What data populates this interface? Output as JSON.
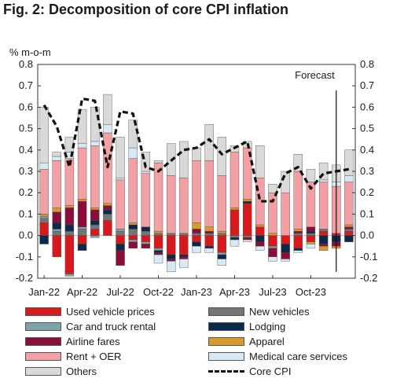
{
  "chart_data": {
    "type": "bar",
    "stacked": true,
    "title": "Fig. 2: Decomposition of core CPI inflation",
    "ylabel": "% m-o-m",
    "ylim": [
      -0.2,
      0.8
    ],
    "yticks": [
      -0.2,
      -0.1,
      0.0,
      0.1,
      0.2,
      0.3,
      0.4,
      0.5,
      0.6,
      0.7,
      0.8
    ],
    "ytick_labels_left": [
      "-0.2",
      "-0.1",
      "0.0",
      "0.1",
      "0.2",
      "0.3",
      "0.4",
      "0.5",
      "0.6",
      "0.7",
      "0.8"
    ],
    "ytick_labels_right": [
      "-0.2",
      "-0.1",
      "0.0",
      "0.1",
      "0.2",
      "0.3",
      "0.4",
      "0.5",
      "0.6",
      "0.7",
      "0.8"
    ],
    "xtick_labels": [
      "Jan-22",
      "Apr-22",
      "Jul-22",
      "Oct-22",
      "Jan-23",
      "Apr-23",
      "Jul-23",
      "Oct-23"
    ],
    "xtick_index": [
      0,
      3,
      6,
      9,
      12,
      15,
      18,
      21
    ],
    "forecast_label": "Forecast",
    "forecast_start_index": 23.5,
    "grid": false,
    "legend_position": "bottom",
    "months": [
      "Jan-22",
      "Feb-22",
      "Mar-22",
      "Apr-22",
      "May-22",
      "Jun-22",
      "Jul-22",
      "Aug-22",
      "Sep-22",
      "Oct-22",
      "Nov-22",
      "Dec-22",
      "Jan-23",
      "Feb-23",
      "Mar-23",
      "Apr-23",
      "May-23",
      "Jun-23",
      "Jul-23",
      "Aug-23",
      "Sep-23",
      "Oct-23",
      "Nov-23",
      "Dec-23",
      "Jan-24"
    ],
    "series": [
      {
        "name": "Used vehicle prices",
        "color": "#d7191c",
        "values": [
          0.06,
          -0.1,
          -0.18,
          -0.04,
          0.03,
          0.07,
          -0.04,
          -0.02,
          -0.03,
          -0.06,
          -0.09,
          -0.09,
          -0.03,
          -0.05,
          -0.08,
          0.12,
          0.15,
          0.04,
          -0.05,
          -0.04,
          -0.06,
          -0.03,
          0.02,
          0.01,
          0.02
        ]
      },
      {
        "name": "New vehicles",
        "color": "#757575",
        "values": [
          0.02,
          0.02,
          0.02,
          0.03,
          0.02,
          0.03,
          0.02,
          0.03,
          0.02,
          0.01,
          0.01,
          0.01,
          0.01,
          0.01,
          0.01,
          -0.01,
          -0.01,
          0.0,
          0.0,
          0.0,
          0.01,
          0.01,
          0.01,
          0.0,
          0.01
        ]
      },
      {
        "name": "Car and truck rental",
        "color": "#7aa4a8",
        "values": [
          0.01,
          0.01,
          -0.01,
          0.01,
          -0.01,
          0.0,
          0.01,
          -0.01,
          -0.01,
          -0.01,
          0.0,
          0.0,
          0.0,
          0.0,
          -0.01,
          0.0,
          0.0,
          0.0,
          -0.01,
          0.0,
          0.0,
          0.0,
          0.0,
          0.0,
          0.0
        ]
      },
      {
        "name": "Lodging",
        "color": "#0b2a4a",
        "values": [
          -0.04,
          0.03,
          0.03,
          -0.03,
          0.02,
          0.02,
          -0.03,
          0.02,
          0.02,
          -0.01,
          -0.02,
          -0.01,
          -0.02,
          -0.01,
          -0.02,
          -0.01,
          0.01,
          -0.03,
          0.0,
          -0.04,
          -0.01,
          0.01,
          -0.04,
          -0.03,
          -0.03
        ]
      },
      {
        "name": "Airline fares",
        "color": "#8b0d3a",
        "values": [
          0.0,
          0.05,
          0.08,
          0.12,
          0.05,
          0.02,
          -0.07,
          -0.03,
          -0.02,
          -0.01,
          -0.01,
          -0.01,
          0.02,
          0.01,
          0.0,
          0.0,
          -0.01,
          -0.02,
          -0.04,
          -0.03,
          0.01,
          0.02,
          -0.01,
          -0.02,
          0.01
        ]
      },
      {
        "name": "Apparel",
        "color": "#d99a2b",
        "values": [
          0.01,
          0.02,
          0.01,
          0.01,
          0.01,
          0.01,
          0.0,
          0.01,
          0.0,
          0.01,
          0.0,
          0.0,
          0.03,
          0.02,
          0.01,
          0.01,
          0.01,
          0.01,
          0.01,
          0.0,
          0.01,
          -0.01,
          -0.02,
          -0.01,
          0.01
        ]
      },
      {
        "name": "Rent + OER",
        "color": "#f2a0a4",
        "values": [
          0.21,
          0.22,
          0.22,
          0.24,
          0.29,
          0.33,
          0.23,
          0.3,
          0.25,
          0.32,
          0.27,
          0.26,
          0.29,
          0.31,
          0.26,
          0.26,
          0.24,
          0.22,
          0.19,
          0.2,
          0.27,
          0.21,
          0.22,
          0.22,
          0.2
        ]
      },
      {
        "name": "Medical care services",
        "color": "#d8e8f5",
        "values": [
          0.03,
          0.02,
          0.03,
          0.02,
          0.02,
          0.04,
          0.01,
          0.05,
          0.01,
          -0.04,
          -0.05,
          -0.04,
          -0.03,
          -0.02,
          -0.03,
          -0.03,
          -0.01,
          -0.02,
          -0.02,
          -0.01,
          -0.01,
          -0.02,
          0.01,
          0.02,
          0.03
        ]
      },
      {
        "name": "Others",
        "color": "#d9d9d9",
        "values": [
          0.26,
          0.02,
          0.07,
          0.16,
          0.16,
          0.14,
          0.19,
          0.13,
          0.09,
          0.01,
          0.15,
          0.17,
          0.06,
          0.17,
          0.18,
          0.03,
          0.03,
          0.15,
          0.04,
          0.1,
          0.08,
          0.06,
          0.08,
          0.08,
          0.12
        ]
      }
    ],
    "line": {
      "name": "Core CPI",
      "color": "#111111",
      "style": "dashed",
      "values": [
        0.61,
        0.51,
        0.32,
        0.64,
        0.63,
        0.32,
        0.58,
        0.57,
        0.32,
        0.3,
        0.35,
        0.4,
        0.41,
        0.45,
        0.38,
        0.41,
        0.44,
        0.16,
        0.16,
        0.29,
        0.32,
        0.22,
        0.29,
        0.3,
        0.31
      ]
    }
  }
}
